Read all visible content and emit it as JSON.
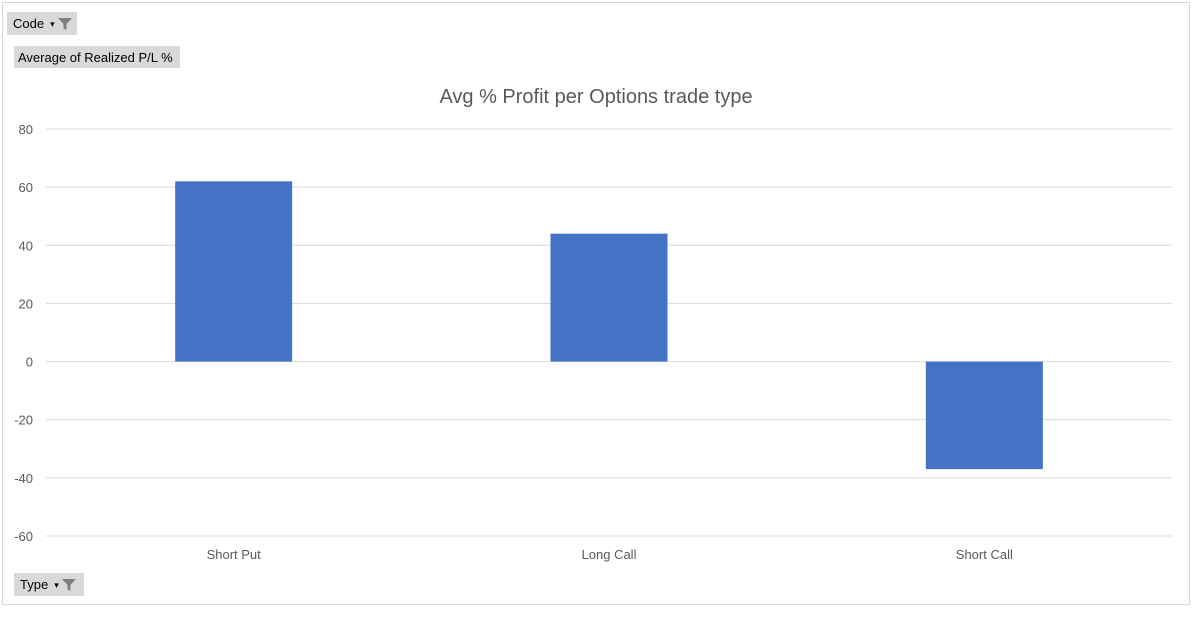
{
  "filters": {
    "code_label": "Code",
    "type_label": "Type",
    "values_label": "Average of Realized P/L %",
    "filter_icon": "filter-funnel-icon"
  },
  "colors": {
    "bar": "#4472C4",
    "grid": "#d9d9d9",
    "text": "#595959",
    "button_bg": "#d9d9d9"
  },
  "chart_data": {
    "type": "bar",
    "title": "Avg % Profit per Options trade type",
    "categories": [
      "Short Put",
      "Long Call",
      "Short Call"
    ],
    "values": [
      62,
      44,
      -37
    ],
    "ylim": [
      -60,
      80
    ],
    "yticks": [
      80,
      60,
      40,
      20,
      0,
      -20,
      -40,
      -60
    ],
    "xlabel": "",
    "ylabel": "",
    "grid": true,
    "legend": "none"
  }
}
